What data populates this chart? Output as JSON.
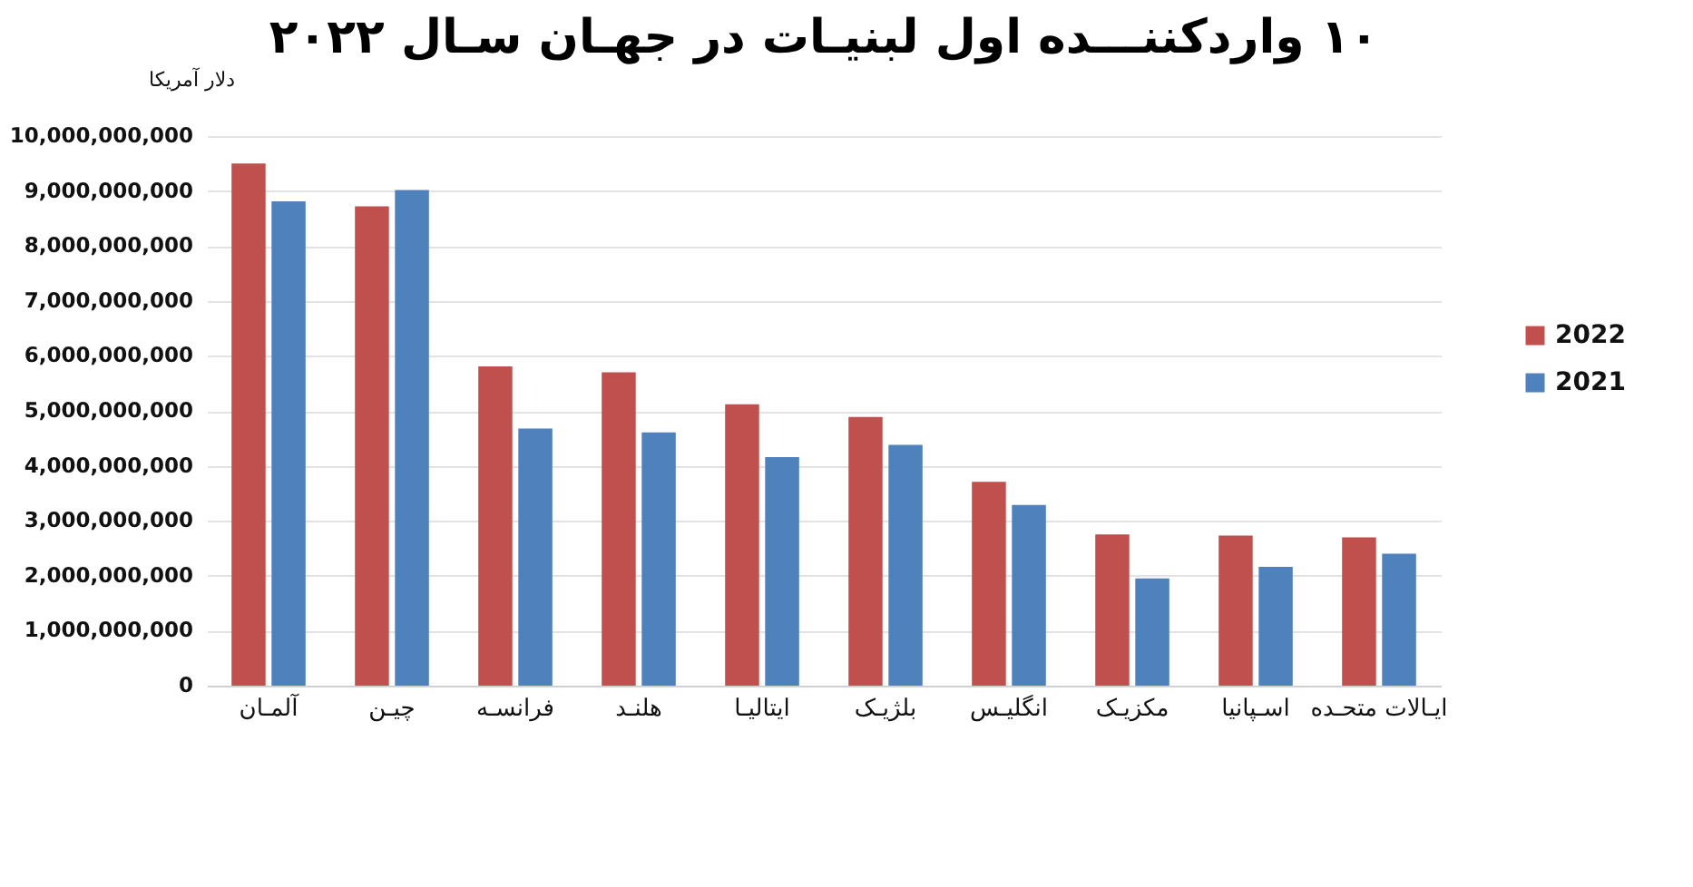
{
  "chart_data": {
    "type": "bar",
    "title": "۱۰ واردکننـــده اول لبنیـات در جهـان سـال ۲۰۲۲",
    "ylabel": "دلار آمریکا",
    "categories": [
      "آلمـان",
      "چیـن",
      "فرانسـه",
      "هلنـد",
      "ایتالیـا",
      "بلژیـک",
      "انگلیـس",
      "مکزیـک",
      "اسـپانیا",
      "ایـالات متحـده"
    ],
    "series": [
      {
        "name": "2022",
        "color": "#c0504d",
        "values": [
          9500000000,
          8720000000,
          5810000000,
          5700000000,
          5120000000,
          4890000000,
          3710000000,
          2750000000,
          2730000000,
          2700000000
        ]
      },
      {
        "name": "2021",
        "color": "#4f81bd",
        "values": [
          8810000000,
          9020000000,
          4680000000,
          4610000000,
          4160000000,
          4380000000,
          3290000000,
          1950000000,
          2160000000,
          2400000000
        ]
      }
    ],
    "ylim": [
      0,
      10000000000
    ],
    "yticks": [
      0,
      {
        "value": 1000000000,
        "label": "1,000,000,000"
      },
      {
        "value": 2000000000,
        "label": "2,000,000,000"
      },
      {
        "value": 3000000000,
        "label": "3,000,000,000"
      },
      {
        "value": 4000000000,
        "label": "4,000,000,000"
      },
      {
        "value": 5000000000,
        "label": "5,000,000,000"
      },
      {
        "value": 6000000000,
        "label": "6,000,000,000"
      },
      {
        "value": 7000000000,
        "label": "7,000,000,000"
      },
      {
        "value": 8000000000,
        "label": "8,000,000,000"
      },
      {
        "value": 9000000000,
        "label": "9,000,000,000"
      },
      {
        "value": 10000000000,
        "label": "10,000,000,000"
      }
    ],
    "grid": "y",
    "legend": "right"
  }
}
